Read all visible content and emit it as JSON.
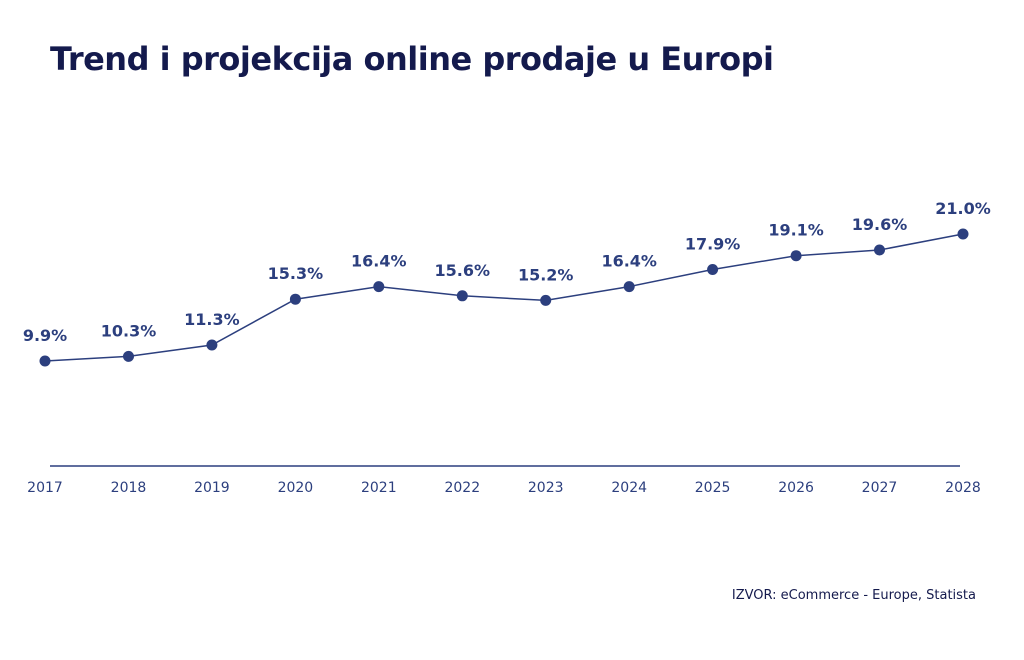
{
  "header": {
    "title": "Trend i projekcija online prodaje u Europi"
  },
  "source": "IZVOR: eCommerce - Europe, Statista",
  "colors": {
    "title": "#141a4d",
    "series": "#2c3f7e",
    "axis": "#2c3f7e"
  },
  "chart_data": {
    "type": "line",
    "title": "Trend i projekcija online prodaje u Europi",
    "x": [
      "2017",
      "2018",
      "2019",
      "2020",
      "2021",
      "2022",
      "2023",
      "2024",
      "2025",
      "2026",
      "2027",
      "2028"
    ],
    "values": [
      9.9,
      10.3,
      11.3,
      15.3,
      16.4,
      15.6,
      15.2,
      16.4,
      17.9,
      19.1,
      19.6,
      21.0
    ],
    "data_labels": [
      "9.9%",
      "10.3%",
      "11.3%",
      "15.3%",
      "16.4%",
      "15.6%",
      "15.2%",
      "16.4%",
      "17.9%",
      "19.1%",
      "19.6%",
      "21.0%"
    ],
    "xlabel": "",
    "ylabel": "",
    "y_axis_visible": false,
    "grid": false,
    "legend": "none"
  }
}
